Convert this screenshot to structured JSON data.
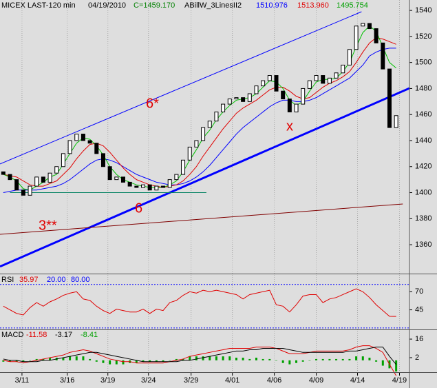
{
  "chart_data": [
    {
      "type": "candlestick",
      "title": "MICEX LAST-120 min",
      "date": "04/19/2010",
      "close_label": "C=1459.170",
      "indicator": "ABillW_3LinesII2",
      "xlim": [
        -0.5,
        61
      ],
      "ylim": [
        1337.8,
        1548
      ],
      "yticks": [
        1360,
        1380,
        1400,
        1420,
        1440,
        1460,
        1480,
        1500,
        1520,
        1540
      ],
      "xticks": [
        {
          "value": 2.8,
          "label": "3/11"
        },
        {
          "value": 9.6,
          "label": "3/16"
        },
        {
          "value": 15.7,
          "label": "3/19"
        },
        {
          "value": 21.8,
          "label": "3/24"
        },
        {
          "value": 28.2,
          "label": "3/29"
        },
        {
          "value": 34.4,
          "label": "4/01"
        },
        {
          "value": 40.7,
          "label": "4/06"
        },
        {
          "value": 47,
          "label": "4/09"
        },
        {
          "value": 53.2,
          "label": "4/14"
        },
        {
          "value": 59.5,
          "label": "4/19"
        }
      ],
      "open": [
        1416,
        1414,
        1410,
        1402,
        1398,
        1405,
        1412,
        1408,
        1415,
        1420,
        1430,
        1440,
        1445,
        1440,
        1438,
        1430,
        1420,
        1410,
        1412,
        1408,
        1405,
        1404,
        1406,
        1402,
        1405,
        1404,
        1410,
        1414,
        1425,
        1435,
        1440,
        1450,
        1455,
        1462,
        1468,
        1472,
        1473,
        1470,
        1476,
        1482,
        1486,
        1490,
        1478,
        1472,
        1462,
        1468,
        1480,
        1486,
        1490,
        1484,
        1488,
        1492,
        1498,
        1510,
        1528,
        1530,
        1526,
        1515,
        1495,
        1450
      ],
      "close": [
        1414,
        1410,
        1402,
        1398,
        1405,
        1412,
        1408,
        1415,
        1420,
        1430,
        1440,
        1445,
        1440,
        1438,
        1430,
        1420,
        1410,
        1412,
        1408,
        1405,
        1404,
        1406,
        1402,
        1405,
        1404,
        1410,
        1414,
        1425,
        1435,
        1440,
        1450,
        1455,
        1462,
        1468,
        1472,
        1473,
        1470,
        1476,
        1482,
        1486,
        1490,
        1478,
        1472,
        1462,
        1468,
        1480,
        1486,
        1490,
        1484,
        1488,
        1492,
        1498,
        1510,
        1528,
        1530,
        1526,
        1515,
        1495,
        1450,
        1459.17
      ],
      "series": [
        {
          "color": "#0000ff",
          "value_label": "1510.976",
          "values": [
            1400,
            1401,
            1402,
            1402,
            1402,
            1402,
            1403,
            1404,
            1405,
            1407,
            1410,
            1414,
            1418,
            1422,
            1425,
            1426,
            1425,
            1423,
            1420,
            1417,
            1414,
            1412,
            1410,
            1408,
            1407,
            1406,
            1406,
            1407,
            1409,
            1412,
            1416,
            1421,
            1427,
            1433,
            1439,
            1445,
            1450,
            1454,
            1458,
            1462,
            1466,
            1469,
            1471,
            1471,
            1470,
            1470,
            1471,
            1473,
            1476,
            1479,
            1482,
            1485,
            1488,
            1493,
            1498,
            1505,
            1508,
            1510,
            1511,
            1510.976
          ]
        },
        {
          "color": "#e00000",
          "value_label": "1513.960",
          "values": [
            1414,
            1413,
            1412,
            1409,
            1406,
            1405,
            1405,
            1407,
            1409,
            1414,
            1419,
            1426,
            1432,
            1437,
            1438,
            1436,
            1431,
            1425,
            1419,
            1414,
            1410,
            1408,
            1406,
            1405,
            1404,
            1405,
            1406,
            1409,
            1414,
            1420,
            1428,
            1435,
            1442,
            1449,
            1455,
            1461,
            1465,
            1468,
            1471,
            1475,
            1479,
            1481,
            1481,
            1478,
            1474,
            1472,
            1473,
            1477,
            1481,
            1484,
            1486,
            1489,
            1493,
            1500,
            1508,
            1515,
            1519,
            1518,
            1516,
            1513.96
          ]
        },
        {
          "color": "#00c000",
          "value_label": "1495.754",
          "values": [
            1414,
            1412,
            1409,
            1403,
            1402,
            1405,
            1408,
            1412,
            1414,
            1422,
            1430,
            1438,
            1442,
            1441,
            1436,
            1429,
            1420,
            1414,
            1410,
            1408,
            1406,
            1405,
            1404,
            1404,
            1404,
            1406,
            1409,
            1416,
            1425,
            1433,
            1442,
            1448,
            1456,
            1462,
            1467,
            1471,
            1472,
            1473,
            1476,
            1481,
            1486,
            1485,
            1480,
            1471,
            1467,
            1470,
            1478,
            1485,
            1487,
            1487,
            1488,
            1493,
            1500,
            1512,
            1523,
            1528,
            1524,
            1512,
            1500,
            1495.754
          ]
        }
      ],
      "trendlines": [
        {
          "color": "#0000ff",
          "width": 1,
          "x": [
            -0.5,
            53.8
          ],
          "y": [
            1422,
            1539
          ]
        },
        {
          "color": "#0000ff",
          "width": 3,
          "x": [
            -0.5,
            61
          ],
          "y": [
            1343.2,
            1480.2
          ]
        },
        {
          "color": "#800000",
          "width": 1,
          "x": [
            -0.5,
            60
          ],
          "y": [
            1368,
            1391.3
          ]
        },
        {
          "color": "#008060",
          "width": 1,
          "x": [
            1,
            30.5
          ],
          "y": [
            1400,
            1400
          ]
        }
      ],
      "annotations": [
        {
          "text": "6*"
        },
        {
          "text": "x"
        },
        {
          "text": "6"
        },
        {
          "text": "3**"
        }
      ]
    },
    {
      "type": "line",
      "title": "RSI",
      "ylim": [
        18,
        94
      ],
      "yticks": [
        45,
        70
      ],
      "levels": [
        {
          "value": 20,
          "label": "20.00"
        },
        {
          "value": 80,
          "label": "80.00"
        }
      ],
      "series": [
        {
          "color": "#e00000",
          "value_label": "35.97",
          "values": [
            50,
            45,
            40,
            38,
            48,
            55,
            50,
            56,
            60,
            65,
            68,
            70,
            60,
            58,
            50,
            44,
            40,
            46,
            44,
            42,
            42,
            46,
            40,
            46,
            44,
            55,
            58,
            65,
            70,
            68,
            72,
            70,
            72,
            70,
            68,
            66,
            60,
            66,
            68,
            70,
            72,
            52,
            50,
            42,
            52,
            64,
            66,
            66,
            55,
            60,
            62,
            66,
            70,
            74,
            70,
            62,
            52,
            44,
            36,
            35.97
          ]
        }
      ]
    },
    {
      "type": "macd",
      "title": "MACD",
      "ylim": [
        -8.9,
        23.3
      ],
      "yticks": [
        2,
        16
      ],
      "series": [
        {
          "color": "#e00000",
          "value_label": "-11.58",
          "values": [
            0,
            -1,
            -1,
            -2,
            -1,
            0,
            1,
            2,
            3,
            4,
            6,
            7,
            8,
            7,
            5,
            3,
            1,
            0,
            -1,
            -1,
            -2,
            -2,
            -2,
            -2,
            -2,
            -1,
            0,
            1,
            3,
            4,
            5,
            6,
            7,
            8,
            9,
            9,
            9,
            9,
            10,
            10,
            10,
            9,
            7,
            5,
            5,
            5,
            6,
            7,
            7,
            7,
            7,
            7,
            8,
            10,
            11,
            11,
            9,
            6,
            -3,
            -11.58
          ]
        },
        {
          "color": "#000000",
          "value_label": "-3.17",
          "values": [
            1,
            0,
            0,
            -1,
            -1,
            -1,
            0,
            0,
            1,
            2,
            3,
            4,
            5,
            6,
            6,
            5,
            4,
            3,
            2,
            1,
            0,
            -1,
            -1,
            -1,
            -1,
            -1,
            -1,
            0,
            0,
            1,
            2,
            3,
            4,
            5,
            6,
            7,
            7,
            8,
            8,
            9,
            9,
            9,
            9,
            8,
            7,
            6,
            6,
            6,
            6,
            6,
            6,
            6,
            7,
            7,
            8,
            9,
            10,
            10,
            3,
            -3.17
          ]
        }
      ],
      "histogram": {
        "color": "#00a000",
        "value_label": "-8.41",
        "values": [
          -1,
          -1,
          -1,
          -1,
          0,
          1,
          1,
          2,
          2,
          2,
          3,
          3,
          3,
          1,
          -1,
          -2,
          -3,
          -3,
          -3,
          -2,
          -2,
          -1,
          -1,
          -1,
          -1,
          0,
          1,
          1,
          3,
          3,
          3,
          3,
          3,
          3,
          3,
          2,
          2,
          1,
          2,
          1,
          1,
          0,
          -2,
          -3,
          -2,
          -1,
          0,
          1,
          1,
          1,
          1,
          1,
          1,
          3,
          3,
          2,
          -1,
          -4,
          -6,
          -8.41
        ]
      }
    }
  ]
}
